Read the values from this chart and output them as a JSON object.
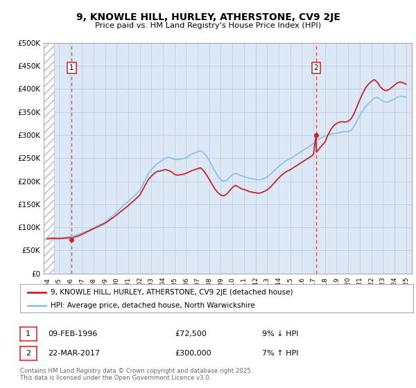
{
  "title": "9, KNOWLE HILL, HURLEY, ATHERSTONE, CV9 2JE",
  "subtitle": "Price paid vs. HM Land Registry's House Price Index (HPI)",
  "ylabel_ticks": [
    "£0",
    "£50K",
    "£100K",
    "£150K",
    "£200K",
    "£250K",
    "£300K",
    "£350K",
    "£400K",
    "£450K",
    "£500K"
  ],
  "ylim": [
    0,
    500000
  ],
  "xlim_start": 1993.7,
  "xlim_end": 2025.5,
  "hpi_color": "#8dc3e3",
  "price_color": "#cc2222",
  "marker1_year": 1996.12,
  "marker1_price": 72500,
  "marker2_year": 2017.22,
  "marker2_price": 300000,
  "legend_label1": "9, KNOWLE HILL, HURLEY, ATHERSTONE, CV9 2JE (detached house)",
  "legend_label2": "HPI: Average price, detached house, North Warwickshire",
  "footer": "Contains HM Land Registry data © Crown copyright and database right 2025.\nThis data is licensed under the Open Government Licence v3.0.",
  "bg_color": "#dce8f5",
  "grid_color": "#c0d0e0",
  "vline_color": "#ee4444",
  "hpi_data": [
    [
      1994.0,
      77000
    ],
    [
      1994.25,
      77500
    ],
    [
      1994.5,
      78000
    ],
    [
      1994.75,
      77500
    ],
    [
      1995.0,
      77000
    ],
    [
      1995.25,
      77500
    ],
    [
      1995.5,
      78000
    ],
    [
      1995.75,
      79000
    ],
    [
      1996.0,
      80000
    ],
    [
      1996.25,
      81500
    ],
    [
      1996.5,
      83000
    ],
    [
      1996.75,
      85000
    ],
    [
      1997.0,
      87000
    ],
    [
      1997.25,
      90000
    ],
    [
      1997.5,
      93000
    ],
    [
      1997.75,
      96000
    ],
    [
      1998.0,
      99000
    ],
    [
      1998.25,
      102000
    ],
    [
      1998.5,
      105000
    ],
    [
      1998.75,
      108000
    ],
    [
      1999.0,
      112000
    ],
    [
      1999.25,
      117000
    ],
    [
      1999.5,
      122000
    ],
    [
      1999.75,
      127000
    ],
    [
      2000.0,
      133000
    ],
    [
      2000.25,
      139000
    ],
    [
      2000.5,
      145000
    ],
    [
      2000.75,
      151000
    ],
    [
      2001.0,
      156000
    ],
    [
      2001.25,
      162000
    ],
    [
      2001.5,
      168000
    ],
    [
      2001.75,
      174000
    ],
    [
      2002.0,
      180000
    ],
    [
      2002.25,
      192000
    ],
    [
      2002.5,
      205000
    ],
    [
      2002.75,
      217000
    ],
    [
      2003.0,
      225000
    ],
    [
      2003.25,
      232000
    ],
    [
      2003.5,
      238000
    ],
    [
      2003.75,
      242000
    ],
    [
      2004.0,
      247000
    ],
    [
      2004.25,
      250000
    ],
    [
      2004.5,
      252000
    ],
    [
      2004.75,
      250000
    ],
    [
      2005.0,
      247000
    ],
    [
      2005.25,
      247000
    ],
    [
      2005.5,
      248000
    ],
    [
      2005.75,
      249000
    ],
    [
      2006.0,
      251000
    ],
    [
      2006.25,
      255000
    ],
    [
      2006.5,
      259000
    ],
    [
      2006.75,
      261000
    ],
    [
      2007.0,
      264000
    ],
    [
      2007.25,
      266000
    ],
    [
      2007.5,
      262000
    ],
    [
      2007.75,
      255000
    ],
    [
      2008.0,
      245000
    ],
    [
      2008.25,
      233000
    ],
    [
      2008.5,
      221000
    ],
    [
      2008.75,
      211000
    ],
    [
      2009.0,
      203000
    ],
    [
      2009.25,
      200000
    ],
    [
      2009.5,
      202000
    ],
    [
      2009.75,
      208000
    ],
    [
      2010.0,
      214000
    ],
    [
      2010.25,
      217000
    ],
    [
      2010.5,
      215000
    ],
    [
      2010.75,
      212000
    ],
    [
      2011.0,
      210000
    ],
    [
      2011.25,
      208000
    ],
    [
      2011.5,
      206000
    ],
    [
      2011.75,
      205000
    ],
    [
      2012.0,
      204000
    ],
    [
      2012.25,
      203000
    ],
    [
      2012.5,
      204000
    ],
    [
      2012.75,
      206000
    ],
    [
      2013.0,
      209000
    ],
    [
      2013.25,
      214000
    ],
    [
      2013.5,
      220000
    ],
    [
      2013.75,
      226000
    ],
    [
      2014.0,
      232000
    ],
    [
      2014.25,
      237000
    ],
    [
      2014.5,
      242000
    ],
    [
      2014.75,
      246000
    ],
    [
      2015.0,
      249000
    ],
    [
      2015.25,
      253000
    ],
    [
      2015.5,
      257000
    ],
    [
      2015.75,
      261000
    ],
    [
      2016.0,
      265000
    ],
    [
      2016.25,
      269000
    ],
    [
      2016.5,
      273000
    ],
    [
      2016.75,
      277000
    ],
    [
      2017.0,
      282000
    ],
    [
      2017.25,
      287000
    ],
    [
      2017.5,
      291000
    ],
    [
      2017.75,
      295000
    ],
    [
      2018.0,
      298000
    ],
    [
      2018.25,
      300000
    ],
    [
      2018.5,
      302000
    ],
    [
      2018.75,
      303000
    ],
    [
      2019.0,
      304000
    ],
    [
      2019.25,
      305000
    ],
    [
      2019.5,
      307000
    ],
    [
      2019.75,
      307000
    ],
    [
      2020.0,
      308000
    ],
    [
      2020.25,
      310000
    ],
    [
      2020.5,
      318000
    ],
    [
      2020.75,
      330000
    ],
    [
      2021.0,
      342000
    ],
    [
      2021.25,
      353000
    ],
    [
      2021.5,
      362000
    ],
    [
      2021.75,
      368000
    ],
    [
      2022.0,
      374000
    ],
    [
      2022.25,
      380000
    ],
    [
      2022.5,
      382000
    ],
    [
      2022.75,
      378000
    ],
    [
      2023.0,
      374000
    ],
    [
      2023.25,
      371000
    ],
    [
      2023.5,
      372000
    ],
    [
      2023.75,
      375000
    ],
    [
      2024.0,
      378000
    ],
    [
      2024.25,
      382000
    ],
    [
      2024.5,
      384000
    ],
    [
      2024.75,
      383000
    ],
    [
      2025.0,
      382000
    ]
  ],
  "price_data": [
    [
      1994.0,
      75000
    ],
    [
      1994.25,
      75500
    ],
    [
      1994.5,
      76000
    ],
    [
      1994.75,
      75800
    ],
    [
      1995.0,
      75500
    ],
    [
      1995.25,
      76000
    ],
    [
      1995.5,
      76500
    ],
    [
      1995.75,
      77000
    ],
    [
      1996.0,
      77500
    ],
    [
      1996.12,
      72500
    ],
    [
      1996.25,
      78000
    ],
    [
      1996.5,
      80000
    ],
    [
      1996.75,
      82000
    ],
    [
      1997.0,
      85000
    ],
    [
      1997.25,
      88000
    ],
    [
      1997.5,
      91000
    ],
    [
      1997.75,
      94000
    ],
    [
      1998.0,
      97000
    ],
    [
      1998.25,
      100000
    ],
    [
      1998.5,
      103000
    ],
    [
      1998.75,
      106000
    ],
    [
      1999.0,
      109000
    ],
    [
      1999.25,
      113000
    ],
    [
      1999.5,
      118000
    ],
    [
      1999.75,
      122000
    ],
    [
      2000.0,
      127000
    ],
    [
      2000.25,
      132000
    ],
    [
      2000.5,
      137000
    ],
    [
      2000.75,
      142000
    ],
    [
      2001.0,
      147000
    ],
    [
      2001.25,
      153000
    ],
    [
      2001.5,
      158000
    ],
    [
      2001.75,
      164000
    ],
    [
      2002.0,
      170000
    ],
    [
      2002.25,
      181000
    ],
    [
      2002.5,
      193000
    ],
    [
      2002.75,
      204000
    ],
    [
      2003.0,
      211000
    ],
    [
      2003.25,
      217000
    ],
    [
      2003.5,
      221000
    ],
    [
      2003.75,
      222000
    ],
    [
      2004.0,
      224000
    ],
    [
      2004.25,
      225000
    ],
    [
      2004.5,
      223000
    ],
    [
      2004.75,
      220000
    ],
    [
      2005.0,
      215000
    ],
    [
      2005.25,
      213000
    ],
    [
      2005.5,
      214000
    ],
    [
      2005.75,
      215000
    ],
    [
      2006.0,
      217000
    ],
    [
      2006.25,
      220000
    ],
    [
      2006.5,
      223000
    ],
    [
      2006.75,
      225000
    ],
    [
      2007.0,
      227000
    ],
    [
      2007.25,
      229000
    ],
    [
      2007.5,
      223000
    ],
    [
      2007.75,
      214000
    ],
    [
      2008.0,
      204000
    ],
    [
      2008.25,
      193000
    ],
    [
      2008.5,
      183000
    ],
    [
      2008.75,
      175000
    ],
    [
      2009.0,
      170000
    ],
    [
      2009.25,
      168000
    ],
    [
      2009.5,
      172000
    ],
    [
      2009.75,
      179000
    ],
    [
      2010.0,
      186000
    ],
    [
      2010.25,
      191000
    ],
    [
      2010.5,
      188000
    ],
    [
      2010.75,
      184000
    ],
    [
      2011.0,
      182000
    ],
    [
      2011.25,
      180000
    ],
    [
      2011.5,
      177000
    ],
    [
      2011.75,
      176000
    ],
    [
      2012.0,
      175000
    ],
    [
      2012.25,
      174000
    ],
    [
      2012.5,
      175000
    ],
    [
      2012.75,
      178000
    ],
    [
      2013.0,
      181000
    ],
    [
      2013.25,
      186000
    ],
    [
      2013.5,
      193000
    ],
    [
      2013.75,
      200000
    ],
    [
      2014.0,
      207000
    ],
    [
      2014.25,
      213000
    ],
    [
      2014.5,
      218000
    ],
    [
      2014.75,
      222000
    ],
    [
      2015.0,
      225000
    ],
    [
      2015.25,
      229000
    ],
    [
      2015.5,
      233000
    ],
    [
      2015.75,
      237000
    ],
    [
      2016.0,
      241000
    ],
    [
      2016.25,
      245000
    ],
    [
      2016.5,
      249000
    ],
    [
      2016.75,
      253000
    ],
    [
      2017.0,
      258000
    ],
    [
      2017.22,
      300000
    ],
    [
      2017.25,
      263000
    ],
    [
      2017.5,
      270000
    ],
    [
      2017.75,
      278000
    ],
    [
      2018.0,
      285000
    ],
    [
      2018.25,
      300000
    ],
    [
      2018.5,
      312000
    ],
    [
      2018.75,
      320000
    ],
    [
      2019.0,
      325000
    ],
    [
      2019.25,
      328000
    ],
    [
      2019.5,
      329000
    ],
    [
      2019.75,
      328000
    ],
    [
      2020.0,
      330000
    ],
    [
      2020.25,
      335000
    ],
    [
      2020.5,
      346000
    ],
    [
      2020.75,
      361000
    ],
    [
      2021.0,
      376000
    ],
    [
      2021.25,
      390000
    ],
    [
      2021.5,
      402000
    ],
    [
      2021.75,
      410000
    ],
    [
      2022.0,
      416000
    ],
    [
      2022.25,
      420000
    ],
    [
      2022.5,
      415000
    ],
    [
      2022.75,
      405000
    ],
    [
      2023.0,
      399000
    ],
    [
      2023.25,
      396000
    ],
    [
      2023.5,
      398000
    ],
    [
      2023.75,
      403000
    ],
    [
      2024.0,
      408000
    ],
    [
      2024.25,
      413000
    ],
    [
      2024.5,
      415000
    ],
    [
      2024.75,
      413000
    ],
    [
      2025.0,
      410000
    ]
  ]
}
